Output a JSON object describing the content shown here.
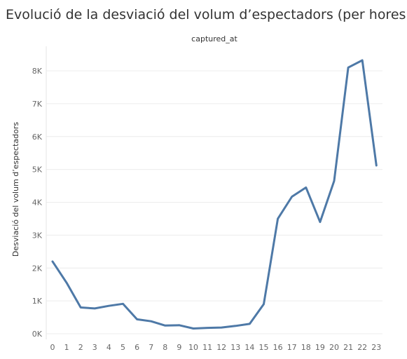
{
  "chart_data": {
    "type": "line",
    "title": "Evolució de la desviació del volum d’espectadors (per hores)",
    "header": "captured_at",
    "ylabel": "Desviació del volum d’espectadors",
    "xlabel": "",
    "x": [
      0,
      1,
      2,
      3,
      4,
      5,
      6,
      7,
      8,
      9,
      10,
      11,
      12,
      13,
      14,
      15,
      16,
      17,
      18,
      19,
      20,
      21,
      22,
      23
    ],
    "series": [
      {
        "values": [
          2200,
          1550,
          800,
          770,
          850,
          910,
          440,
          380,
          250,
          260,
          160,
          180,
          190,
          240,
          300,
          900,
          3500,
          4170,
          4450,
          3400,
          4650,
          8100,
          8320,
          5120
        ]
      }
    ],
    "ylim": [
      0,
      8500
    ],
    "yticks": [
      0,
      1000,
      2000,
      3000,
      4000,
      5000,
      6000,
      7000,
      8000
    ],
    "ytick_labels": [
      "0K",
      "1K",
      "2K",
      "3K",
      "4K",
      "5K",
      "6K",
      "7K",
      "8K"
    ],
    "grid": true,
    "line_color": "#4e79a7"
  }
}
